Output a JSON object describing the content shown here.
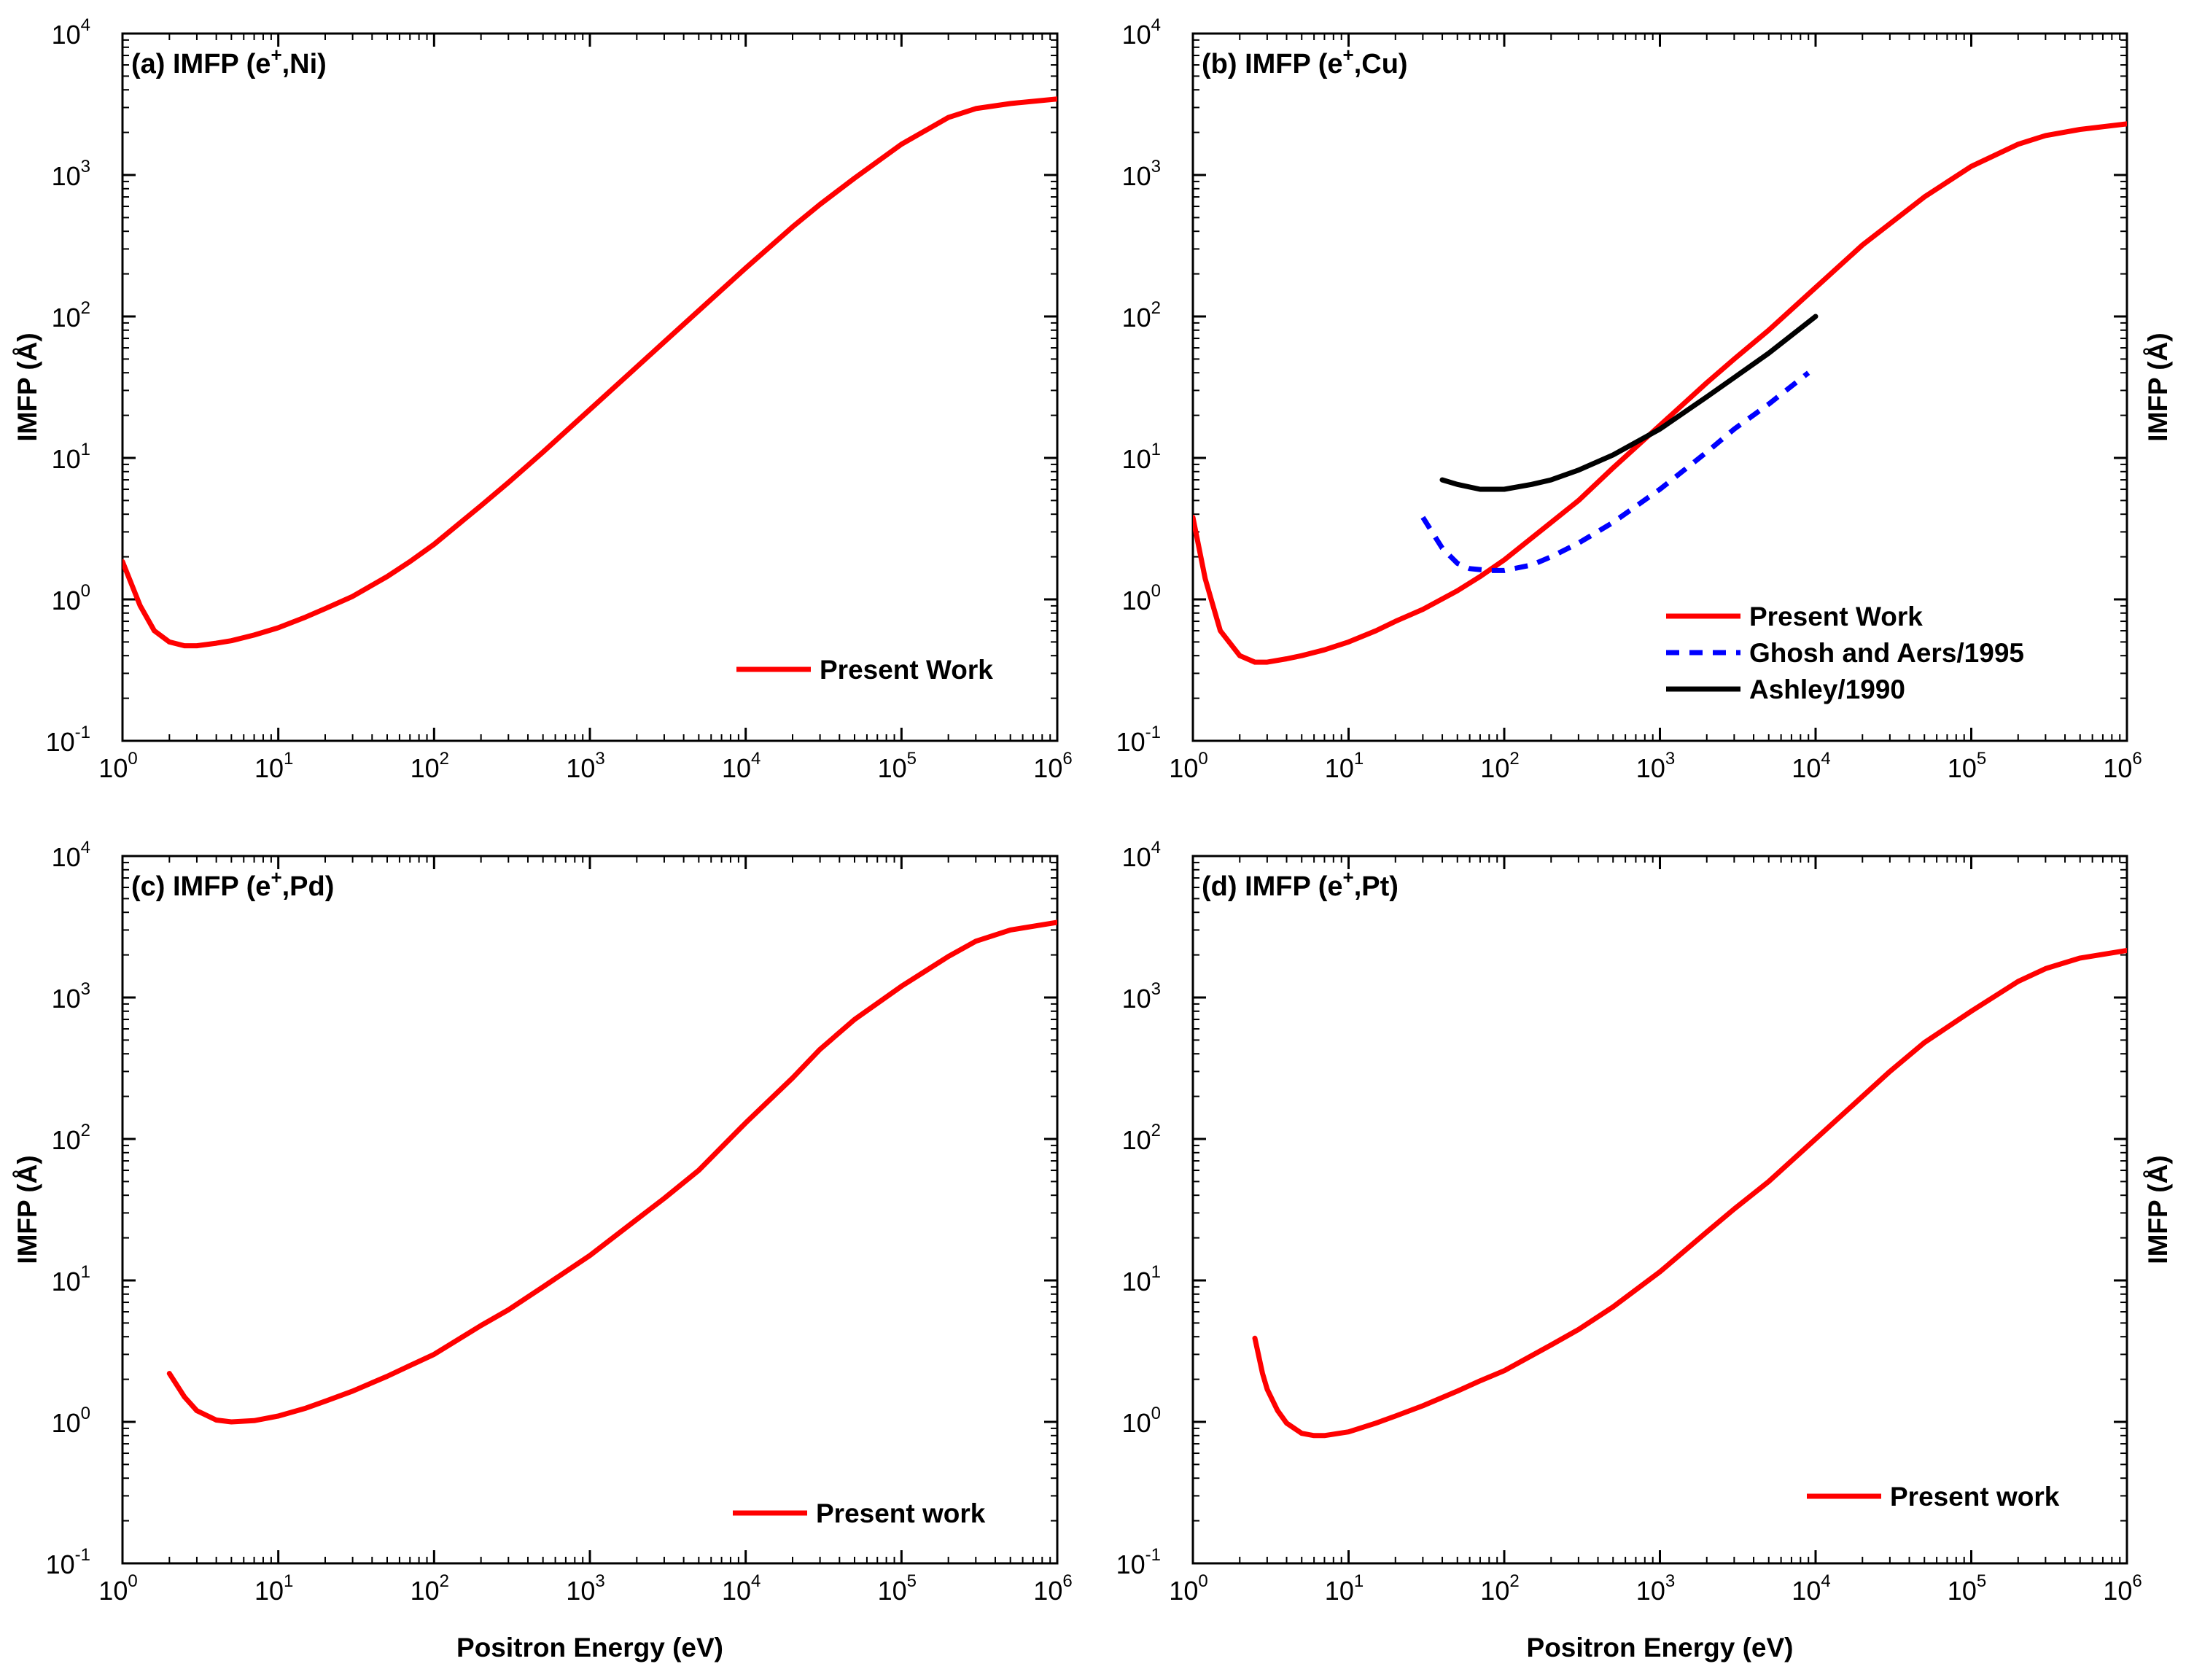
{
  "chart_data": [
    {
      "type": "line",
      "panel_title": "(a) IMFP (e+,Ni)",
      "title_parts": {
        "prefix": "(a) IMFP (e",
        "sup": "+",
        "suffix": ",Ni)"
      },
      "xlabel": "",
      "ylabel": "IMFP (Å)",
      "x_scale": "log",
      "y_scale": "log",
      "xlim": [
        1,
        1000000
      ],
      "ylim": [
        0.1,
        10000
      ],
      "x_ticks": [
        {
          "base": "10",
          "exp": "0"
        },
        {
          "base": "10",
          "exp": "1"
        },
        {
          "base": "10",
          "exp": "2"
        },
        {
          "base": "10",
          "exp": "3"
        },
        {
          "base": "10",
          "exp": "4"
        },
        {
          "base": "10",
          "exp": "5"
        },
        {
          "base": "10",
          "exp": "6"
        }
      ],
      "y_ticks": [
        {
          "base": "10",
          "exp": "-1"
        },
        {
          "base": "10",
          "exp": "0"
        },
        {
          "base": "10",
          "exp": "1"
        },
        {
          "base": "10",
          "exp": "2"
        },
        {
          "base": "10",
          "exp": "3"
        },
        {
          "base": "10",
          "exp": "4"
        }
      ],
      "legend": {
        "position": "bottom-right"
      },
      "series": [
        {
          "name": "Present Work",
          "color": "#ff0000",
          "style": "solid",
          "x": [
            1,
            1.3,
            1.6,
            2,
            2.5,
            3,
            4,
            5,
            7,
            10,
            15,
            20,
            30,
            50,
            70,
            100,
            200,
            300,
            500,
            1000,
            2000,
            3000,
            5000,
            10000,
            20000,
            30000,
            50000,
            100000,
            200000,
            300000,
            500000,
            1000000
          ],
          "y": [
            1.85,
            0.9,
            0.6,
            0.5,
            0.47,
            0.47,
            0.49,
            0.51,
            0.56,
            0.63,
            0.75,
            0.86,
            1.05,
            1.45,
            1.85,
            2.45,
            4.6,
            6.7,
            11,
            22,
            44,
            66,
            110,
            220,
            430,
            620,
            950,
            1650,
            2550,
            2950,
            3200,
            3450
          ]
        }
      ]
    },
    {
      "type": "line",
      "panel_title": "(b) IMFP (e+,Cu)",
      "title_parts": {
        "prefix": "(b) IMFP (e",
        "sup": "+",
        "suffix": ",Cu)"
      },
      "xlabel": "",
      "ylabel": "IMFP (Å)",
      "x_scale": "log",
      "y_scale": "log",
      "xlim": [
        1,
        1000000
      ],
      "ylim": [
        0.1,
        10000
      ],
      "x_ticks": [
        {
          "base": "10",
          "exp": "0"
        },
        {
          "base": "10",
          "exp": "1"
        },
        {
          "base": "10",
          "exp": "2"
        },
        {
          "base": "10",
          "exp": "3"
        },
        {
          "base": "10",
          "exp": "4"
        },
        {
          "base": "10",
          "exp": "5"
        },
        {
          "base": "10",
          "exp": "6"
        }
      ],
      "y_ticks": [
        {
          "base": "10",
          "exp": "-1"
        },
        {
          "base": "10",
          "exp": "0"
        },
        {
          "base": "10",
          "exp": "1"
        },
        {
          "base": "10",
          "exp": "2"
        },
        {
          "base": "10",
          "exp": "3"
        },
        {
          "base": "10",
          "exp": "4"
        }
      ],
      "legend": {
        "position": "bottom-right"
      },
      "series": [
        {
          "name": "Present Work",
          "color": "#ff0000",
          "style": "solid",
          "x": [
            1,
            1.2,
            1.5,
            2,
            2.5,
            3,
            4,
            5,
            7,
            10,
            15,
            20,
            30,
            50,
            70,
            100,
            200,
            300,
            500,
            1000,
            2000,
            3000,
            5000,
            10000,
            20000,
            50000,
            100000,
            200000,
            300000,
            500000,
            1000000
          ],
          "y": [
            3.8,
            1.4,
            0.6,
            0.4,
            0.36,
            0.36,
            0.38,
            0.4,
            0.44,
            0.5,
            0.6,
            0.7,
            0.85,
            1.15,
            1.45,
            1.9,
            3.5,
            5,
            8.5,
            17,
            34,
            50,
            80,
            160,
            320,
            700,
            1150,
            1650,
            1900,
            2100,
            2300
          ]
        },
        {
          "name": "Ghosh and Aers/1995",
          "color": "#0000ff",
          "style": "dashed",
          "x": [
            30,
            40,
            50,
            60,
            80,
            100,
            150,
            200,
            300,
            500,
            1000,
            2000,
            3000,
            5000,
            9000
          ],
          "y": [
            3.8,
            2.3,
            1.8,
            1.65,
            1.6,
            1.6,
            1.75,
            2.0,
            2.5,
            3.5,
            6,
            11,
            16,
            24,
            40
          ]
        },
        {
          "name": "Ashley/1990",
          "color": "#000000",
          "style": "solid",
          "x": [
            40,
            50,
            70,
            100,
            150,
            200,
            300,
            500,
            1000,
            2000,
            3000,
            5000,
            10000
          ],
          "y": [
            7,
            6.5,
            6,
            6,
            6.5,
            7,
            8.2,
            10.5,
            16,
            27,
            37,
            55,
            100
          ]
        }
      ]
    },
    {
      "type": "line",
      "panel_title": "(c) IMFP (e+,Pd)",
      "title_parts": {
        "prefix": "(c) IMFP (e",
        "sup": "+",
        "suffix": ",Pd)"
      },
      "xlabel": "Positron Energy (eV)",
      "ylabel": "IMFP (Å)",
      "x_scale": "log",
      "y_scale": "log",
      "xlim": [
        1,
        1000000
      ],
      "ylim": [
        0.1,
        10000
      ],
      "x_ticks": [
        {
          "base": "10",
          "exp": "0"
        },
        {
          "base": "10",
          "exp": "1"
        },
        {
          "base": "10",
          "exp": "2"
        },
        {
          "base": "10",
          "exp": "3"
        },
        {
          "base": "10",
          "exp": "4"
        },
        {
          "base": "10",
          "exp": "5"
        },
        {
          "base": "10",
          "exp": "6"
        }
      ],
      "y_ticks": [
        {
          "base": "10",
          "exp": "-1"
        },
        {
          "base": "10",
          "exp": "0"
        },
        {
          "base": "10",
          "exp": "1"
        },
        {
          "base": "10",
          "exp": "2"
        },
        {
          "base": "10",
          "exp": "3"
        },
        {
          "base": "10",
          "exp": "4"
        }
      ],
      "legend": {
        "position": "bottom-right"
      },
      "series": [
        {
          "name": "Present work",
          "color": "#ff0000",
          "style": "solid",
          "x": [
            2,
            2.5,
            3,
            4,
            5,
            7,
            10,
            15,
            20,
            30,
            50,
            70,
            100,
            200,
            300,
            500,
            1000,
            2000,
            3000,
            5000,
            10000,
            20000,
            30000,
            50000,
            100000,
            200000,
            300000,
            500000,
            1000000
          ],
          "y": [
            2.2,
            1.5,
            1.2,
            1.03,
            1.0,
            1.02,
            1.1,
            1.25,
            1.4,
            1.65,
            2.1,
            2.5,
            3.0,
            4.8,
            6.2,
            9,
            15,
            27,
            38,
            60,
            130,
            270,
            430,
            700,
            1200,
            1950,
            2500,
            3000,
            3400
          ]
        }
      ]
    },
    {
      "type": "line",
      "panel_title": "(d) IMFP (e+,Pt)",
      "title_parts": {
        "prefix": "(d) IMFP (e",
        "sup": "+",
        "suffix": ",Pt)"
      },
      "xlabel": "Positron Energy (eV)",
      "ylabel": "IMFP (Å)",
      "x_scale": "log",
      "y_scale": "log",
      "xlim": [
        1,
        1000000
      ],
      "ylim": [
        0.1,
        10000
      ],
      "x_ticks": [
        {
          "base": "10",
          "exp": "0"
        },
        {
          "base": "10",
          "exp": "1"
        },
        {
          "base": "10",
          "exp": "2"
        },
        {
          "base": "10",
          "exp": "3"
        },
        {
          "base": "10",
          "exp": "4"
        },
        {
          "base": "10",
          "exp": "5"
        },
        {
          "base": "10",
          "exp": "6"
        }
      ],
      "y_ticks": [
        {
          "base": "10",
          "exp": "-1"
        },
        {
          "base": "10",
          "exp": "0"
        },
        {
          "base": "10",
          "exp": "1"
        },
        {
          "base": "10",
          "exp": "2"
        },
        {
          "base": "10",
          "exp": "3"
        },
        {
          "base": "10",
          "exp": "4"
        }
      ],
      "legend": {
        "position": "bottom-right"
      },
      "series": [
        {
          "name": "Present work",
          "color": "#ff0000",
          "style": "solid",
          "x": [
            2.5,
            2.8,
            3,
            3.5,
            4,
            5,
            6,
            7,
            10,
            15,
            20,
            30,
            50,
            70,
            100,
            200,
            300,
            500,
            1000,
            2000,
            3000,
            5000,
            10000,
            20000,
            30000,
            50000,
            100000,
            200000,
            300000,
            500000,
            1000000
          ],
          "y": [
            3.9,
            2.2,
            1.7,
            1.2,
            0.98,
            0.83,
            0.8,
            0.8,
            0.85,
            0.98,
            1.1,
            1.3,
            1.65,
            1.95,
            2.3,
            3.5,
            4.5,
            6.5,
            11.5,
            22,
            32,
            50,
            100,
            200,
            300,
            480,
            800,
            1300,
            1600,
            1900,
            2150
          ]
        }
      ]
    }
  ]
}
